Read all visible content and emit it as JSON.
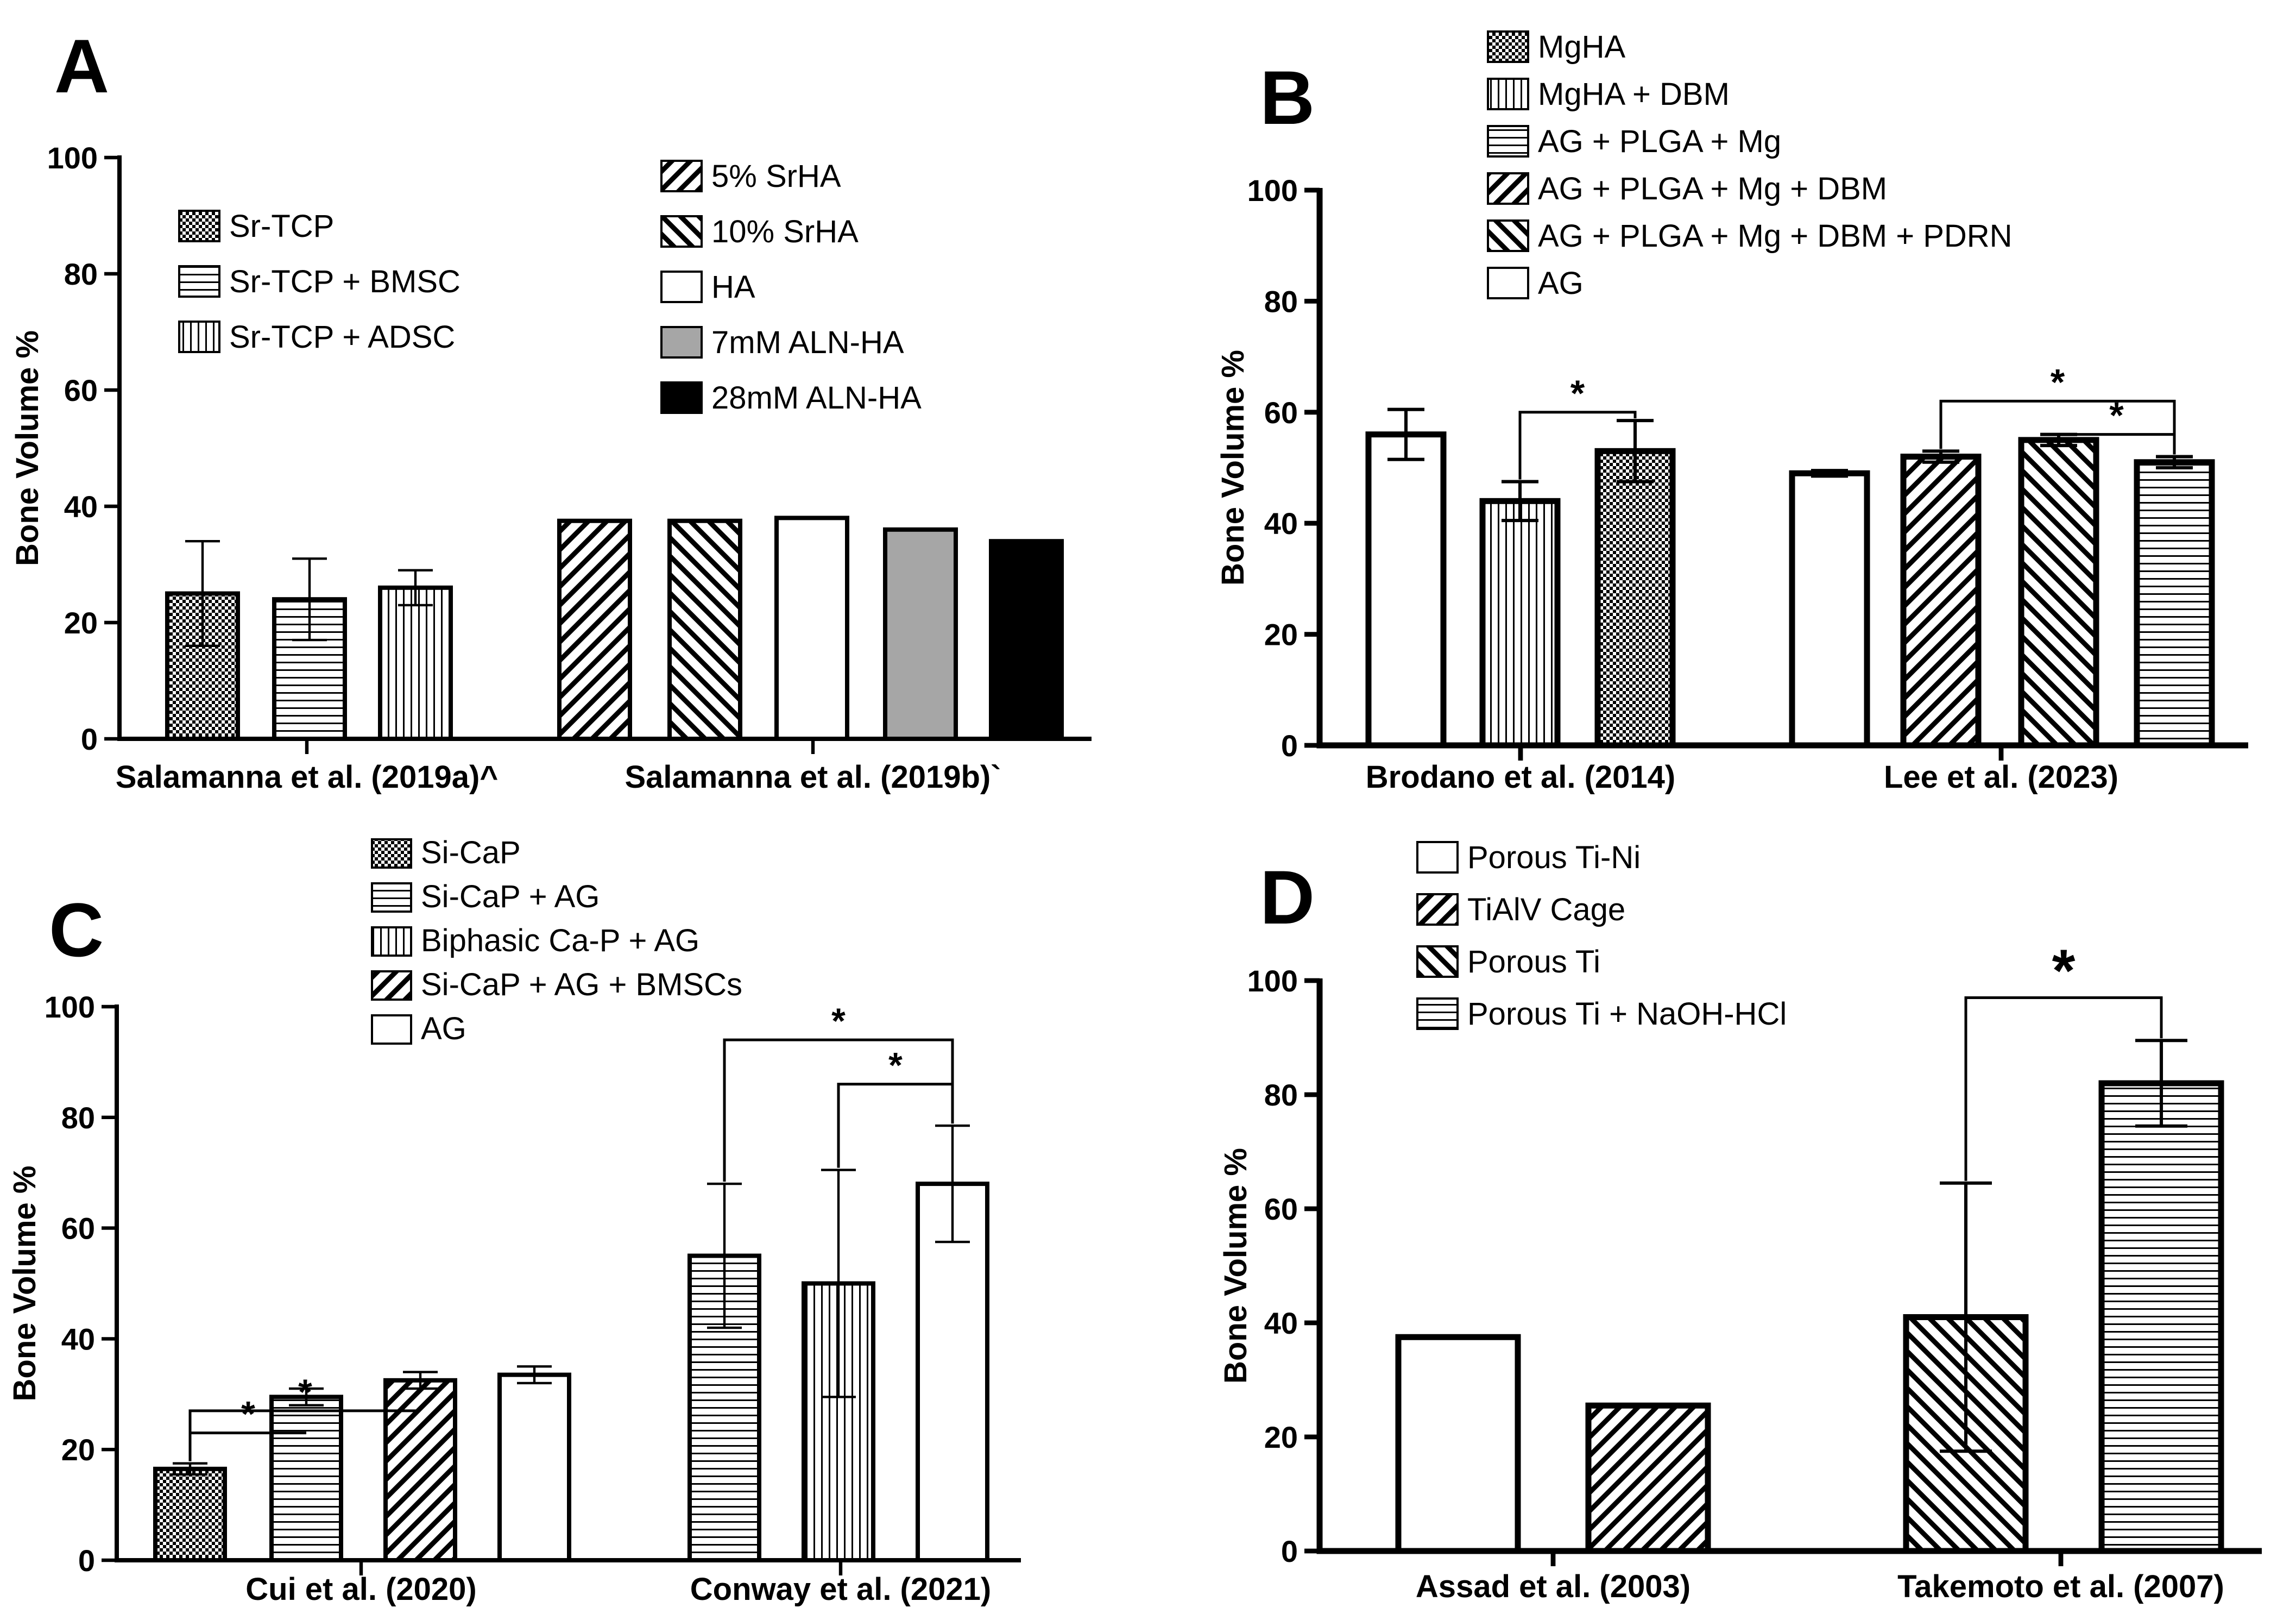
{
  "colors": {
    "ink": "#000000",
    "paper": "#ffffff",
    "gray": "#a6a6a6"
  },
  "chart_data": [
    {
      "panel": "A",
      "type": "bar",
      "ylabel": "Bone Volume %",
      "ylim": [
        0,
        100
      ],
      "yticks": [
        "0",
        "20",
        "40",
        "60",
        "80",
        "100"
      ],
      "groups": [
        "Salamanna et al. (2019a)^",
        "Salamanna et al. (2019b)`"
      ],
      "legend": [
        [
          "Sr-TCP",
          "Sr-TCP + BMSC",
          "Sr-TCP + ADSC"
        ],
        [
          "5% SrHA",
          "10% SrHA",
          "HA",
          "7mM ALN-HA",
          "28mM ALN-HA"
        ]
      ],
      "bars": [
        {
          "series": "Sr-TCP",
          "group": 0,
          "value": 25,
          "error": 9,
          "pattern": "checker"
        },
        {
          "series": "Sr-TCP + BMSC",
          "group": 0,
          "value": 24,
          "error": 7,
          "pattern": "hlines"
        },
        {
          "series": "Sr-TCP + ADSC",
          "group": 0,
          "value": 26,
          "error": 3,
          "pattern": "vlines"
        },
        {
          "series": "5% SrHA",
          "group": 1,
          "value": 37.5,
          "error": 0,
          "pattern": "back"
        },
        {
          "series": "10% SrHA",
          "group": 1,
          "value": 37.5,
          "error": 0,
          "pattern": "fwd"
        },
        {
          "series": "HA",
          "group": 1,
          "value": 38,
          "error": 0,
          "pattern": "white"
        },
        {
          "series": "7mM ALN-HA",
          "group": 1,
          "value": 36,
          "error": 0,
          "pattern": "gray"
        },
        {
          "series": "28mM ALN-HA",
          "group": 1,
          "value": 34,
          "error": 0,
          "pattern": "black"
        }
      ],
      "significance": []
    },
    {
      "panel": "B",
      "type": "bar",
      "ylabel": "Bone Volume %",
      "ylim": [
        0,
        100
      ],
      "yticks": [
        "0",
        "20",
        "40",
        "60",
        "80",
        "100"
      ],
      "groups": [
        "Brodano et al. (2014)",
        "Lee et al. (2023)"
      ],
      "legend": [
        [
          "MgHA",
          "MgHA + DBM",
          "AG + PLGA + Mg",
          "AG + PLGA + Mg + DBM",
          "AG + PLGA + Mg + DBM + PDRN",
          "AG"
        ]
      ],
      "bars": [
        {
          "series": "AG",
          "group": 0,
          "value": 56,
          "error": 4.5,
          "pattern": "white"
        },
        {
          "series": "MgHA + DBM",
          "group": 0,
          "value": 44,
          "error": 3.5,
          "pattern": "vlines"
        },
        {
          "series": "MgHA",
          "group": 0,
          "value": 53,
          "error": 5.5,
          "pattern": "checker"
        },
        {
          "series": "AG",
          "group": 1,
          "value": 49,
          "error": 0.5,
          "pattern": "white"
        },
        {
          "series": "AG + PLGA + Mg + DBM",
          "group": 1,
          "value": 52,
          "error": 1,
          "pattern": "back"
        },
        {
          "series": "AG + PLGA + Mg + DBM + PDRN",
          "group": 1,
          "value": 55,
          "error": 1,
          "pattern": "fwd"
        },
        {
          "series": "AG + PLGA + Mg",
          "group": 1,
          "value": 51,
          "error": 1,
          "pattern": "hlines"
        }
      ],
      "significance": [
        {
          "from": 1,
          "to": 2,
          "level": 60,
          "label": "*"
        },
        {
          "from": 4,
          "to": 6,
          "level": 62,
          "label": "*"
        },
        {
          "from": 5,
          "to": 6,
          "level": 56,
          "label": "*"
        }
      ]
    },
    {
      "panel": "C",
      "type": "bar",
      "ylabel": "Bone Volume %",
      "ylim": [
        0,
        100
      ],
      "yticks": [
        "0",
        "20",
        "40",
        "60",
        "80",
        "100"
      ],
      "groups": [
        "Cui et al. (2020)",
        "Conway et al. (2021)"
      ],
      "legend": [
        [
          "Si-CaP",
          "Si-CaP + AG",
          "Biphasic Ca-P + AG",
          "Si-CaP + AG + BMSCs",
          "AG"
        ]
      ],
      "bars": [
        {
          "series": "Si-CaP",
          "group": 0,
          "value": 16.5,
          "error": 1,
          "pattern": "checker"
        },
        {
          "series": "Si-CaP + AG",
          "group": 0,
          "value": 29.5,
          "error": 1.5,
          "pattern": "hlines"
        },
        {
          "series": "Si-CaP + AG + BMSCs",
          "group": 0,
          "value": 32.5,
          "error": 1.5,
          "pattern": "back"
        },
        {
          "series": "AG",
          "group": 0,
          "value": 33.5,
          "error": 1.5,
          "pattern": "white"
        },
        {
          "series": "Si-CaP + AG",
          "group": 1,
          "value": 55,
          "error": 13,
          "pattern": "hlines"
        },
        {
          "series": "Biphasic Ca-P + AG",
          "group": 1,
          "value": 50,
          "error": 20.5,
          "pattern": "vlines"
        },
        {
          "series": "AG",
          "group": 1,
          "value": 68,
          "error": 10.5,
          "pattern": "white"
        }
      ],
      "significance": [
        {
          "from": 0,
          "to": 1,
          "level": 23,
          "label": "*"
        },
        {
          "from": 0,
          "to": 2,
          "level": 27,
          "label": "*"
        },
        {
          "from": 4,
          "to": 6,
          "level": 94,
          "label": "*"
        },
        {
          "from": 5,
          "to": 6,
          "level": 86,
          "label": "*"
        }
      ]
    },
    {
      "panel": "D",
      "type": "bar",
      "ylabel": "Bone Volume %",
      "ylim": [
        0,
        100
      ],
      "yticks": [
        "0",
        "20",
        "40",
        "60",
        "80",
        "100"
      ],
      "groups": [
        "Assad et al. (2003)",
        "Takemoto et al. (2007)"
      ],
      "legend": [
        [
          "Porous Ti-Ni",
          "TiAlV Cage",
          "Porous Ti",
          "Porous Ti + NaOH-HCl"
        ]
      ],
      "bars": [
        {
          "series": "Porous Ti-Ni",
          "group": 0,
          "value": 37.5,
          "error": 0,
          "pattern": "white"
        },
        {
          "series": "TiAlV Cage",
          "group": 0,
          "value": 25.5,
          "error": 0,
          "pattern": "back"
        },
        {
          "series": "Porous Ti",
          "group": 1,
          "value": 41,
          "error": 23.5,
          "pattern": "fwd"
        },
        {
          "series": "Porous Ti + NaOH-HCl",
          "group": 1,
          "value": 82,
          "error": 7.5,
          "pattern": "hlines"
        }
      ],
      "significance": [
        {
          "from": 2,
          "to": 3,
          "level": 97,
          "label": "*"
        }
      ]
    }
  ]
}
